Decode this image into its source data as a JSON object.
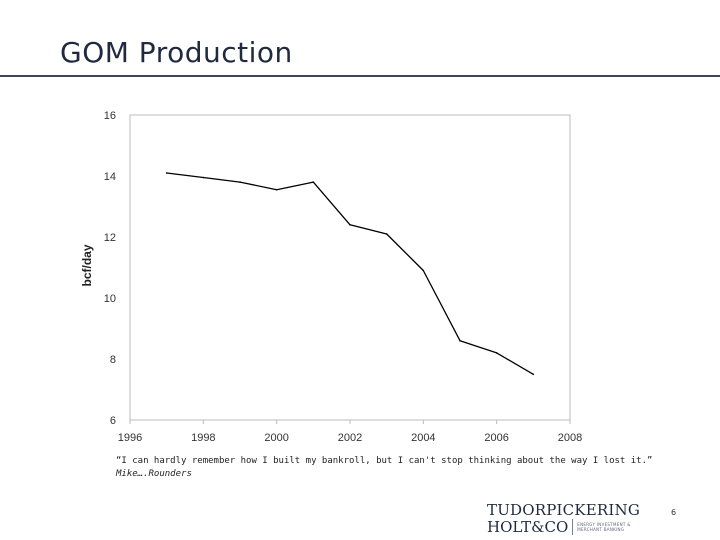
{
  "slide": {
    "title": "GOM Production",
    "page_number": "6"
  },
  "quote": {
    "text": "“I can hardly remember how I built my bankroll, but I can't stop thinking about the way I lost it.”",
    "attribution": "Mike….Rounders"
  },
  "logo": {
    "line1": "TUDORPICKERING",
    "line2": "HOLT&CO",
    "tagline_1": "ENERGY INVESTMENT &",
    "tagline_2": "MERCHANT BANKING"
  },
  "colors": {
    "title": "#1f2a40",
    "line": "#000000",
    "axis": "#bbbbbb"
  },
  "chart_data": {
    "type": "line",
    "title": "",
    "xlabel": "",
    "ylabel": "bcf/day",
    "xlim": [
      1996,
      2008
    ],
    "ylim": [
      6,
      16
    ],
    "xticks": [
      1996,
      1998,
      2000,
      2002,
      2004,
      2006,
      2008
    ],
    "yticks": [
      6,
      8,
      10,
      12,
      14,
      16
    ],
    "grid": false,
    "series": [
      {
        "name": "GOM Production",
        "x": [
          1997,
          1998,
          1999,
          2000,
          2001,
          2002,
          2003,
          2004,
          2005,
          2006,
          2007
        ],
        "y": [
          14.1,
          13.95,
          13.8,
          13.55,
          13.8,
          12.4,
          12.1,
          10.9,
          8.6,
          8.2,
          7.5
        ]
      }
    ]
  }
}
